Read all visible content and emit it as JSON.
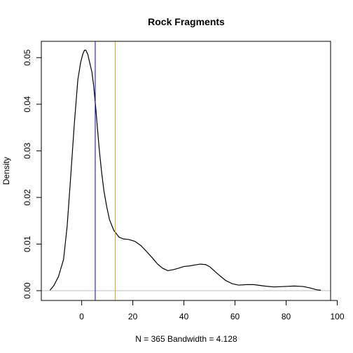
{
  "chart_data": {
    "type": "line",
    "title": "Rock Fragments",
    "xlabel": "N = 365   Bandwidth = 4.128",
    "ylabel": "Density",
    "xlim": [
      -15.8,
      97.4
    ],
    "ylim": [
      -0.0021,
      0.0535
    ],
    "x_ticks": [
      0,
      20,
      40,
      60,
      80,
      100
    ],
    "x_tick_labels": [
      "0",
      "20",
      "40",
      "60",
      "80",
      "100"
    ],
    "y_ticks": [
      0.0,
      0.01,
      0.02,
      0.03,
      0.04,
      0.05
    ],
    "y_tick_labels": [
      "0.00",
      "0.01",
      "0.02",
      "0.03",
      "0.04",
      "0.05"
    ],
    "grid": false,
    "series": [
      {
        "x": [
          -12.4,
          -10.9,
          -9.1,
          -7.1,
          -5.7,
          -4.3,
          -2.9,
          -1.5,
          -0.4,
          0.4,
          1.1,
          1.6,
          2.4,
          3.1,
          4.0,
          4.7,
          5.5,
          6.2,
          6.9,
          7.8,
          8.7,
          9.8,
          10.9,
          12.6,
          14.6,
          16.3,
          18.3,
          20.8,
          23.1,
          25.4,
          27.7,
          29.7,
          31.7,
          33.7,
          35.8,
          37.8,
          40.1,
          42.1,
          44.1,
          46.4,
          48.5,
          50.2,
          52.0,
          54.3,
          56.3,
          58.9,
          61.4,
          64.6,
          67.4,
          71.5,
          75.2,
          79.2,
          83.2,
          86.7,
          89.3,
          91.9,
          93.6
        ],
        "y": [
          0.0001,
          0.0011,
          0.003,
          0.0067,
          0.0138,
          0.0245,
          0.0357,
          0.0453,
          0.049,
          0.0507,
          0.0516,
          0.0516,
          0.0507,
          0.049,
          0.0469,
          0.0439,
          0.0392,
          0.0346,
          0.0301,
          0.0254,
          0.0214,
          0.018,
          0.0152,
          0.0129,
          0.0115,
          0.0111,
          0.011,
          0.0106,
          0.0097,
          0.0084,
          0.007,
          0.0057,
          0.0048,
          0.0043,
          0.0045,
          0.0048,
          0.0052,
          0.0053,
          0.0055,
          0.0057,
          0.0056,
          0.0051,
          0.0042,
          0.0031,
          0.0022,
          0.0015,
          0.0012,
          0.0013,
          0.0013,
          0.001,
          0.0008,
          0.0009,
          0.001,
          0.0009,
          0.0006,
          0.0002,
          0.0001
        ],
        "color": "#000000"
      }
    ],
    "vlines": [
      {
        "x": 5.3,
        "color": "#0000ff"
      },
      {
        "x": 13.1,
        "color": "#daa520"
      }
    ],
    "hlines": [
      {
        "y": 0,
        "color": "#bebebe"
      }
    ]
  }
}
